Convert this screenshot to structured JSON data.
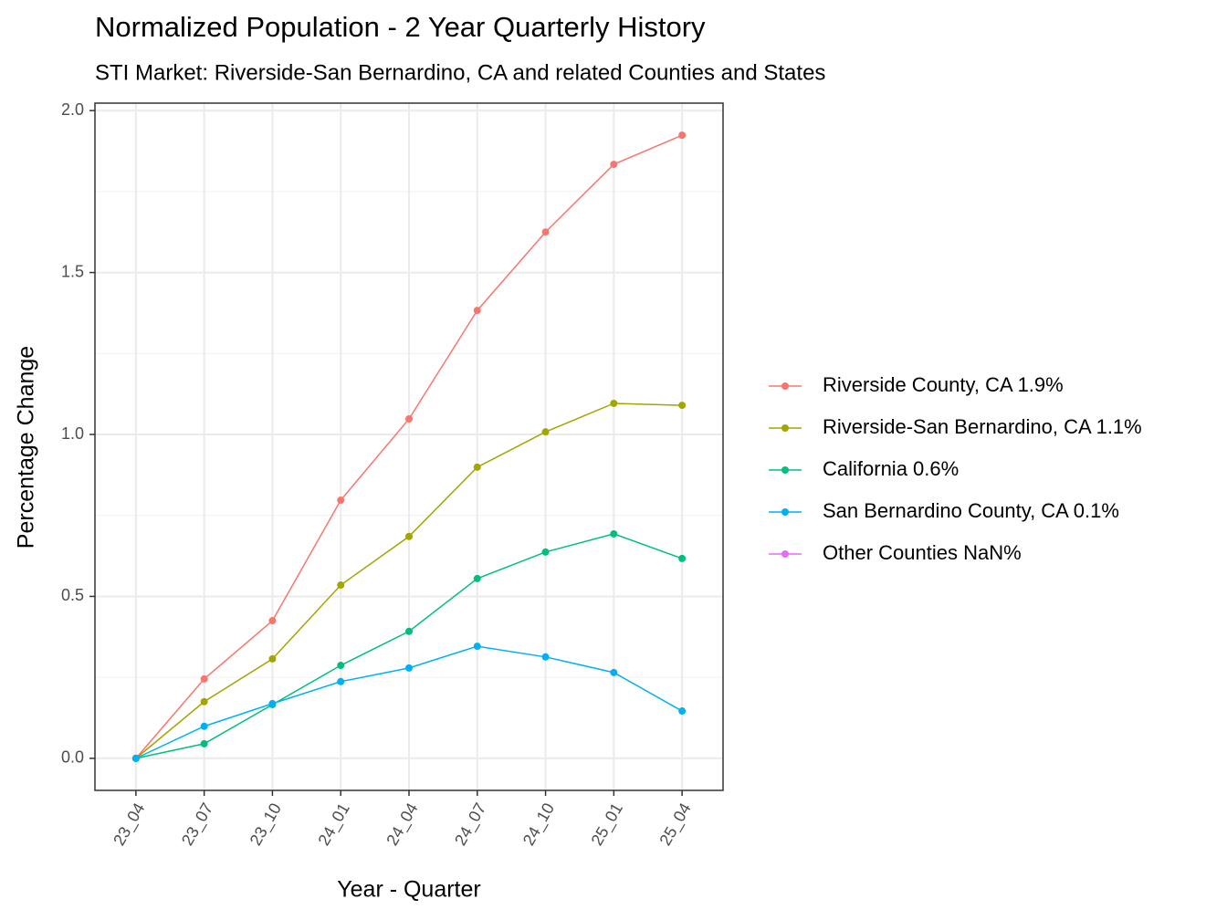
{
  "chart_data": {
    "type": "line",
    "title": "Normalized Population - 2 Year Quarterly History",
    "subtitle": "STI Market: Riverside-San Bernardino, CA and related Counties and States",
    "x_label": "Year - Quarter",
    "y_label": "Percentage Change",
    "categories": [
      "23_04",
      "23_07",
      "23_10",
      "24_01",
      "24_04",
      "24_07",
      "24_10",
      "25_01",
      "25_04"
    ],
    "series": [
      {
        "name": "Riverside County, CA 1.9%",
        "color": "#F8766D",
        "values": [
          0,
          0.245,
          0.425,
          0.797,
          1.048,
          1.383,
          1.625,
          1.834,
          1.924
        ]
      },
      {
        "name": "Riverside-San Bernardino, CA 1.1%",
        "color": "#A3A500",
        "values": [
          0,
          0.175,
          0.307,
          0.535,
          0.685,
          0.899,
          1.008,
          1.096,
          1.09
        ]
      },
      {
        "name": "California 0.6%",
        "color": "#00BF7D",
        "values": [
          0,
          0.045,
          0.166,
          0.287,
          0.392,
          0.555,
          0.637,
          0.693,
          0.617
        ]
      },
      {
        "name": "San Bernardino County, CA 0.1%",
        "color": "#00B0F6",
        "values": [
          0,
          0.099,
          0.169,
          0.237,
          0.279,
          0.346,
          0.313,
          0.265,
          0.146
        ]
      },
      {
        "name": "Other Counties NaN%",
        "color": "#E76BF3",
        "values": [
          null,
          null,
          null,
          null,
          null,
          null,
          null,
          null,
          null
        ]
      }
    ],
    "ylim": [
      -0.099,
      2.023
    ],
    "yticks": [
      {
        "value": 0,
        "label": "0.0"
      },
      0.5,
      {
        "value": 1,
        "label": "1.0"
      },
      1.5,
      {
        "value": 2,
        "label": "2.0"
      }
    ],
    "grid": true,
    "legend": "right"
  }
}
